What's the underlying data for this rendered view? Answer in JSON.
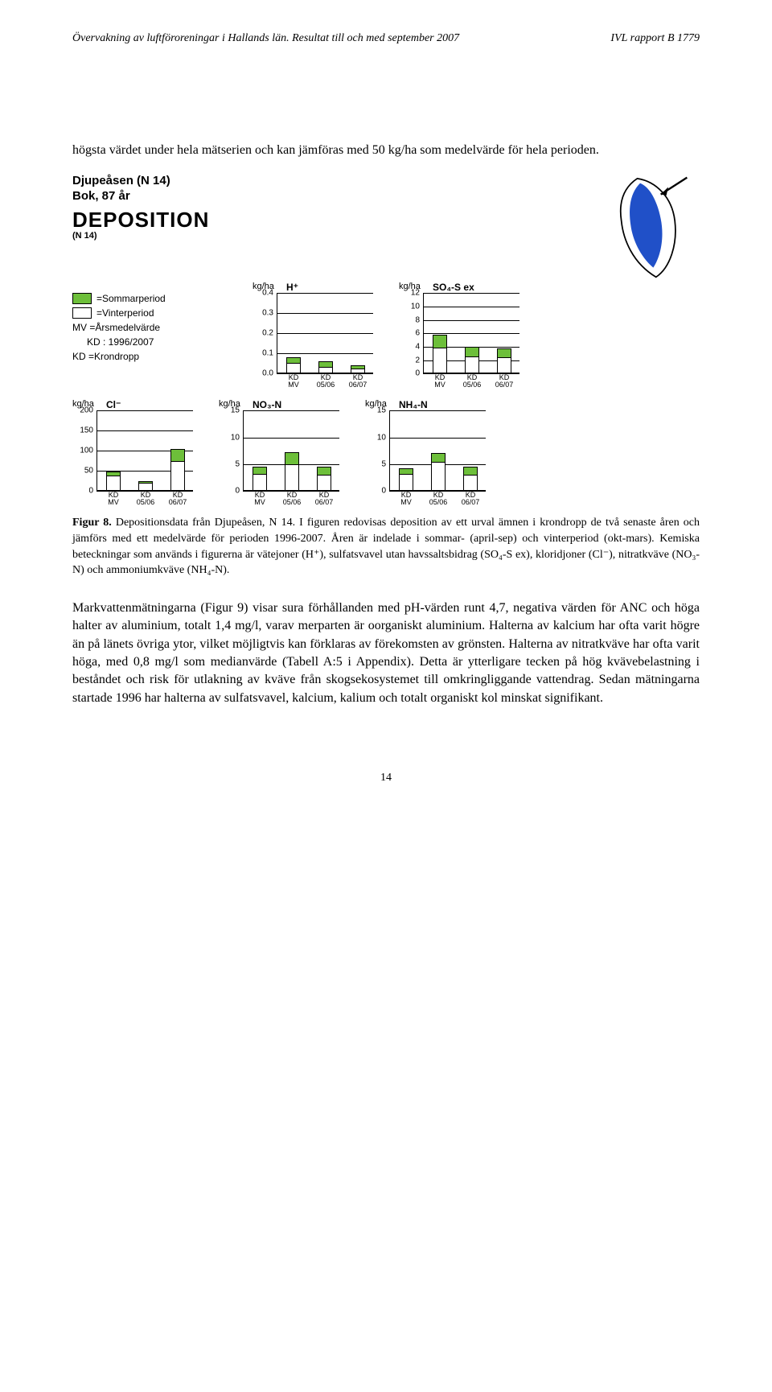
{
  "header": {
    "left": "Övervakning av luftföroreningar i Hallands län. Resultat till och med september 2007",
    "right": "IVL rapport B 1779"
  },
  "intro_text": "högsta värdet under hela mätserien och kan jämföras med 50 kg/ha som medelvärde för hela perioden.",
  "fig_header": {
    "line1": "Djupeåsen (N 14)",
    "line2": "Bok, 87 år",
    "dep": "DEPOSITION",
    "dep_sub": "(N 14)"
  },
  "legend": {
    "summer_color": "#6dbf3a",
    "summer_label": "=Sommarperiod",
    "winter_color": "#ffffff",
    "winter_label": "=Vinterperiod",
    "mv_label": "MV =Årsmedelvärde",
    "kd_year": "KD : 1996/2007",
    "kd_label": "KD =Krondropp"
  },
  "ylabel": "kg/ha",
  "x_labels": [
    "KD\nMV",
    "KD\n05/06",
    "KD\n06/07"
  ],
  "charts": {
    "h": {
      "title": "H⁺",
      "ylim": 0.4,
      "ytick": 0.1,
      "dec": 1,
      "summer": [
        0.03,
        0.03,
        0.02
      ],
      "winter": [
        0.05,
        0.03,
        0.02
      ]
    },
    "so4": {
      "title": "SO₄-S ex",
      "ylim": 12,
      "ytick": 2,
      "dec": 0,
      "summer": [
        2.0,
        1.6,
        1.5
      ],
      "winter": [
        3.8,
        2.4,
        2.3
      ]
    },
    "cl": {
      "title": "Cl⁻",
      "ylim": 200,
      "ytick": 50,
      "dec": 0,
      "summer": [
        12,
        6,
        32
      ],
      "winter": [
        36,
        18,
        73
      ]
    },
    "no3": {
      "title": "NO₃-N",
      "ylim": 15,
      "ytick": 5,
      "dec": 0,
      "summer": [
        1.5,
        2.3,
        1.7
      ],
      "winter": [
        3.1,
        4.9,
        2.9
      ]
    },
    "nh4": {
      "title": "NH₄-N",
      "ylim": 15,
      "ytick": 5,
      "dec": 0,
      "summer": [
        1.2,
        1.8,
        1.7
      ],
      "winter": [
        3.0,
        5.3,
        2.9
      ]
    }
  },
  "caption": {
    "fignum": "Figur 8.",
    "text": " Depositionsdata från Djupeåsen, N 14. I figuren redovisas deposition av ett urval ämnen i krondropp de två senaste åren och jämförs med ett medelvärde för perioden 1996-2007. Åren är indelade i sommar- (april-sep) och vinterperiod (okt-mars). Kemiska beteckningar som används i figurerna är vätejoner (H⁺), sulfatsvavel utan havssaltsbidrag (SO₄-S ex), kloridjoner (Cl⁻), nitratkväve (NO₃-N) och ammoniumkväve (NH₄-N)."
  },
  "para2": "Markvattenmätningarna (Figur 9) visar sura förhållanden med pH-värden runt 4,7, negativa värden för ANC och höga halter av aluminium, totalt 1,4 mg/l, varav merparten är oorganiskt aluminium. Halterna av kalcium har ofta varit högre än på länets övriga ytor, vilket möjligtvis kan förklaras av förekomsten av grönsten. Halterna av nitratkväve har ofta varit höga, med 0,8 mg/l som medianvärde (Tabell A:5 i Appendix). Detta är ytterligare tecken på hög kvävebelastning i beståndet och risk för utlakning av kväve från skogsekosystemet till omkringliggande vattendrag. Sedan mätningarna startade 1996 har halterna av sulfatsvavel, kalcium, kalium och totalt organiskt kol minskat signifikant.",
  "page_number": "14",
  "map_colors": {
    "land": "#ffffff",
    "water": "#2050c8",
    "stroke": "#000000"
  }
}
